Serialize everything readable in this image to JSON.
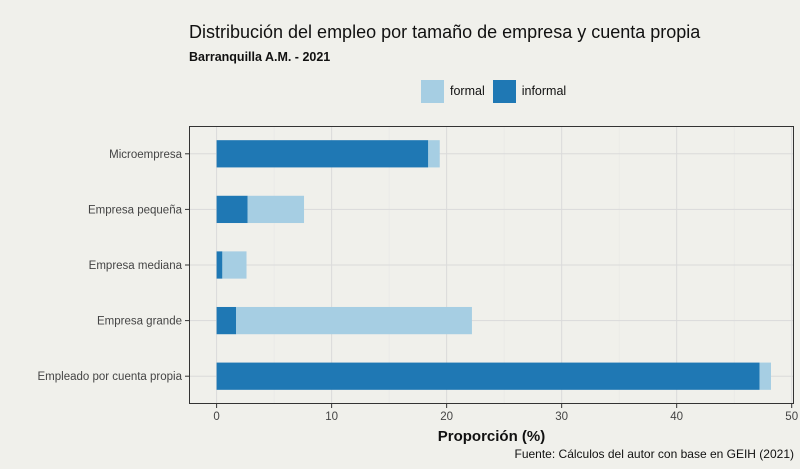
{
  "chart_data": {
    "type": "bar",
    "orientation": "horizontal",
    "stacked": true,
    "title": "Distribución del empleo por tamaño de empresa y cuenta propia",
    "subtitle": "Barranquilla A.M. - 2021",
    "xlabel": "Proporción (%)",
    "ylabel": "",
    "caption": "Fuente: Cálculos del autor con base en GEIH (2021)",
    "xlim": [
      -2.4,
      50.2
    ],
    "xticks": [
      0,
      10,
      20,
      30,
      40,
      50
    ],
    "grid": true,
    "legend_position": "top",
    "categories": [
      "Microempresa",
      "Empresa pequeña",
      "Empresa mediana",
      "Empresa grande",
      "Empleado por cuenta propia"
    ],
    "series": [
      {
        "name": "informal",
        "color": "#1f78b4",
        "values": [
          18.4,
          2.7,
          0.5,
          1.7,
          47.2
        ]
      },
      {
        "name": "formal",
        "color": "#a6cee3",
        "values": [
          1.0,
          4.9,
          2.1,
          20.5,
          1.0
        ]
      }
    ]
  },
  "legend": {
    "items": [
      {
        "label": "formal",
        "color": "#a6cee3"
      },
      {
        "label": "informal",
        "color": "#1f78b4"
      }
    ]
  }
}
